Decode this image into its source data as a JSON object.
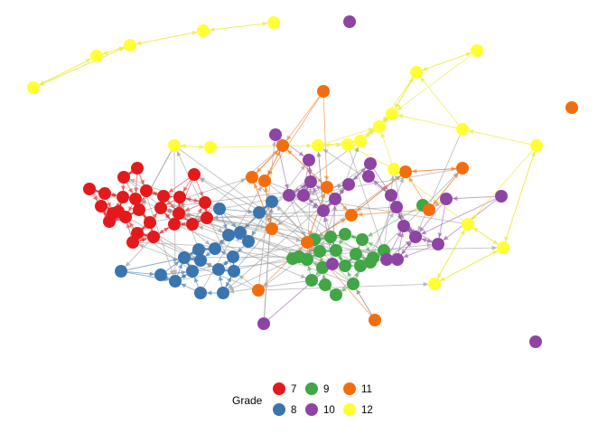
{
  "legend": {
    "title": "Grade",
    "items": [
      {
        "label": "7",
        "color": "#e31a1c"
      },
      {
        "label": "8",
        "color": "#3a75b0"
      },
      {
        "label": "9",
        "color": "#41a645"
      },
      {
        "label": "10",
        "color": "#8e44a3"
      },
      {
        "label": "11",
        "color": "#f46d0d"
      },
      {
        "label": "12",
        "color": "#ffff33"
      }
    ]
  },
  "colors": {
    "edge_default": "#9e9e9e",
    "background": "#ffffff"
  }
}
